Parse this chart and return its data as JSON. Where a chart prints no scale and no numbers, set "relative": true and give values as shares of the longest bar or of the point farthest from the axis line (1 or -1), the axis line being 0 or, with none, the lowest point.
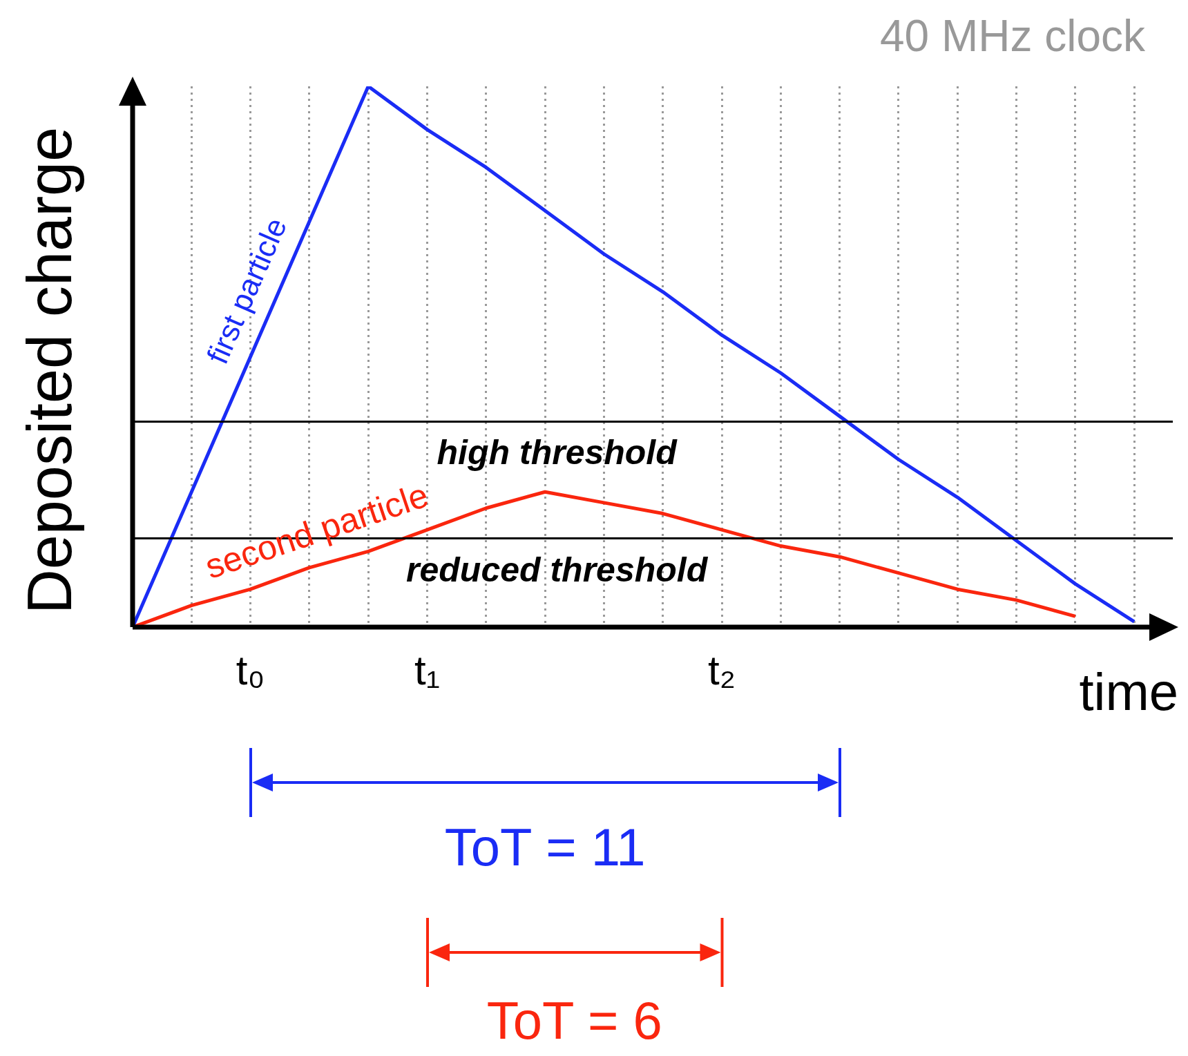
{
  "chart_data": {
    "type": "line",
    "relative": true,
    "ylabel": "Deposited charge",
    "xlabel": "time",
    "categories": [
      null,
      null,
      "t₀",
      null,
      null,
      "t₁",
      null,
      null,
      null,
      null,
      "t₂",
      null,
      null,
      null,
      null,
      null,
      null,
      null
    ],
    "grid": "x",
    "tick_labels": "x",
    "legend": false,
    "marker": "none",
    "line_style": "solid",
    "series": [
      {
        "name": "first particle",
        "color": "#1a2cf5",
        "values": [
          0,
          0.25,
          0.5,
          0.75,
          1,
          0.92,
          0.85,
          0.77,
          0.69,
          0.62,
          0.54,
          0.47,
          0.39,
          0.31,
          0.24,
          0.16,
          0.08,
          0.01
        ]
      },
      {
        "name": "second particle",
        "color": "#fa260e",
        "values": [
          0,
          0.04,
          0.07,
          0.11,
          0.14,
          0.18,
          0.22,
          0.25,
          0.23,
          0.21,
          0.18,
          0.15,
          0.13,
          0.1,
          0.07,
          0.05,
          0.02,
          null
        ]
      }
    ],
    "ref_lines": [
      {
        "axis": "y",
        "value": 0.38,
        "label": "high threshold",
        "color": "#000000"
      },
      {
        "axis": "y",
        "value": 0.164,
        "label": "reduced threshold",
        "color": "#000000"
      }
    ],
    "annotations": [
      "40 MHz clock",
      "ToT = 11",
      "ToT = 6"
    ]
  }
}
